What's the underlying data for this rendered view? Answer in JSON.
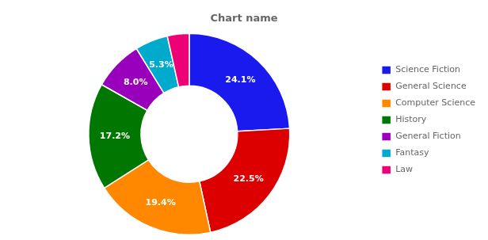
{
  "chart_data": {
    "type": "doughnut",
    "title": "Chart name",
    "categories": [
      "Science Fiction",
      "General Science",
      "Computer Science",
      "History",
      "General Fiction",
      "Fantasy",
      "Law"
    ],
    "values": [
      24.1,
      22.5,
      19.4,
      17.2,
      8.0,
      5.3,
      3.5
    ],
    "value_labels": [
      "24.1%",
      "22.5%",
      "19.4%",
      "17.2%",
      "8.0%",
      "5.3%",
      null
    ],
    "colors": [
      "#1a1aee",
      "#dd0000",
      "#ff8800",
      "#007700",
      "#9900bb",
      "#00aacc",
      "#ee0077"
    ],
    "data_labels": true,
    "legend": "right"
  }
}
